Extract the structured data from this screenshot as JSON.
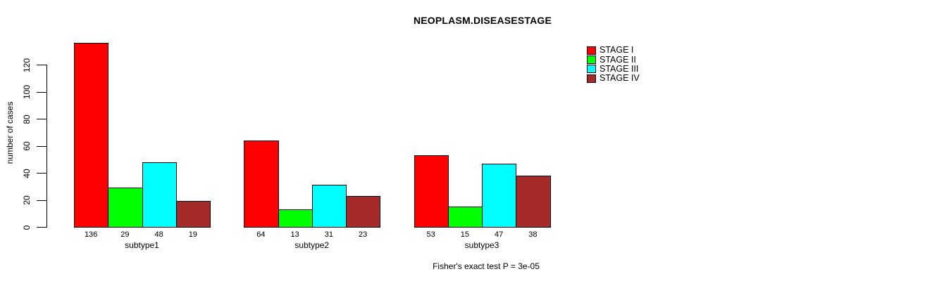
{
  "title": "NEOPLASM.DISEASESTAGE",
  "chart_data": {
    "type": "bar",
    "title": "NEOPLASM.DISEASESTAGE",
    "categories": [
      "subtype1",
      "subtype2",
      "subtype3"
    ],
    "series": [
      {
        "name": "STAGE I",
        "color": "#FF0000",
        "values": [
          136,
          64,
          53
        ]
      },
      {
        "name": "STAGE II",
        "color": "#00FF00",
        "values": [
          29,
          13,
          15
        ]
      },
      {
        "name": "STAGE III",
        "color": "#00FFFF",
        "values": [
          48,
          31,
          47
        ]
      },
      {
        "name": "STAGE IV",
        "color": "#A52A2A",
        "values": [
          19,
          23,
          38
        ]
      }
    ],
    "xlabel": "",
    "ylabel": "number of cases",
    "yticks": [
      0,
      20,
      40,
      60,
      80,
      100,
      120
    ],
    "ylim": [
      0,
      137
    ],
    "grid": false,
    "legend_position": "top-right",
    "bar_outline_color": "#000000",
    "value_labels_shown": true
  },
  "annotation": {
    "stats_text": "Fisher's exact test P = 3e-05"
  }
}
